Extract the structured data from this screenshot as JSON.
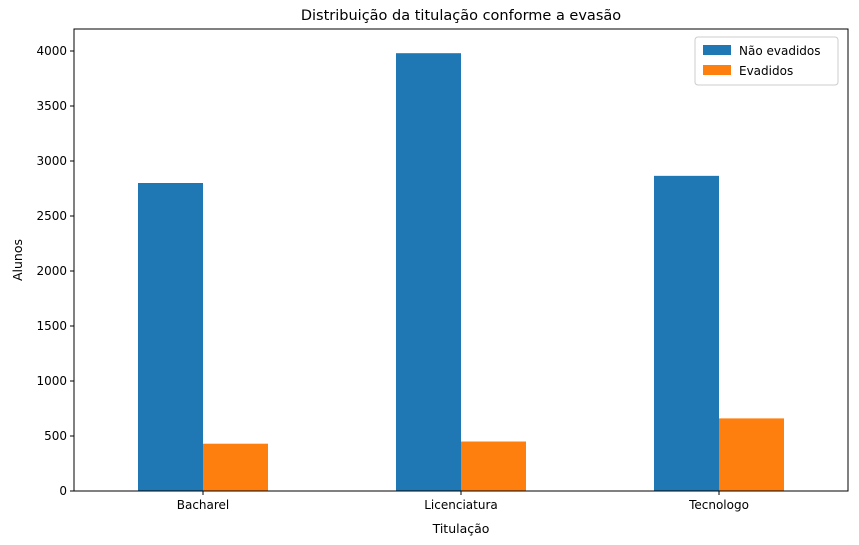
{
  "chart_data": {
    "type": "bar",
    "title": "Distribuição da titulação conforme a evasão",
    "xlabel": "Titulação",
    "ylabel": "Alunos",
    "categories": [
      "Bacharel",
      "Licenciatura",
      "Tecnologo"
    ],
    "series": [
      {
        "name": "Não evadidos",
        "values": [
          2800,
          3980,
          2865
        ],
        "color": "#1f77b4"
      },
      {
        "name": "Evadidos",
        "values": [
          430,
          450,
          660
        ],
        "color": "#ff7f0e"
      }
    ],
    "ylim": [
      0,
      4200
    ],
    "yticks": [
      0,
      500,
      1000,
      1500,
      2000,
      2500,
      3000,
      3500,
      4000
    ],
    "grid": false,
    "legend_position": "top-right"
  }
}
